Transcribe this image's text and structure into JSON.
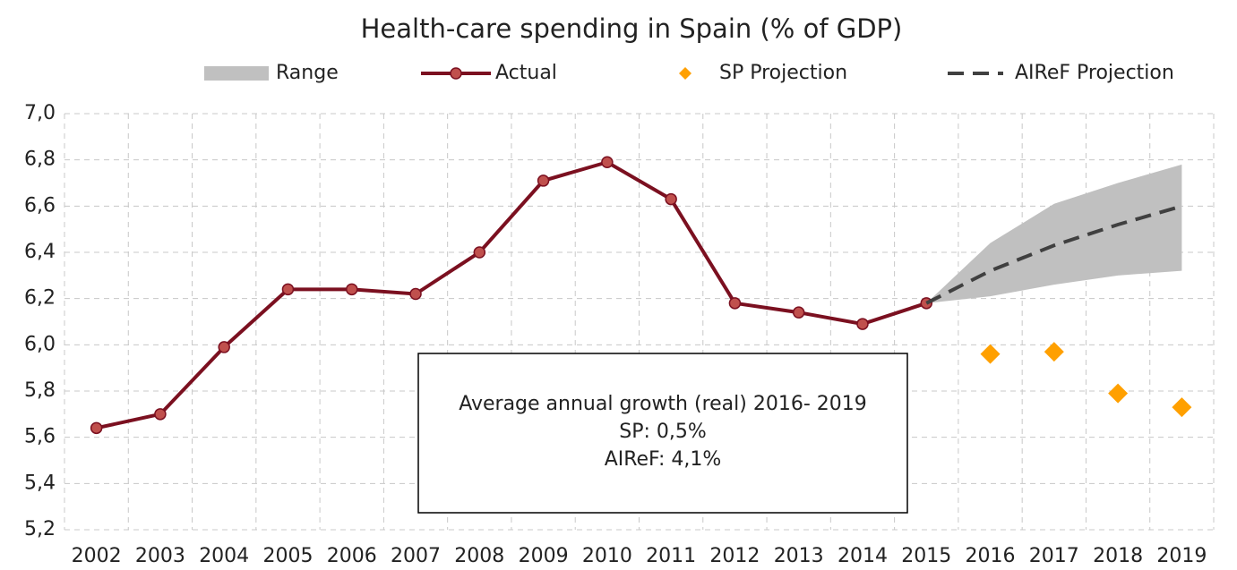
{
  "chart_data": {
    "type": "line",
    "title": "Health-care spending in Spain (% of GDP)",
    "categories": [
      "2002",
      "2003",
      "2004",
      "2005",
      "2006",
      "2007",
      "2008",
      "2009",
      "2010",
      "2011",
      "2012",
      "2013",
      "2014",
      "2015",
      "2016",
      "2017",
      "2018",
      "2019"
    ],
    "series": [
      {
        "name": "Range",
        "kind": "area",
        "color": "#c0c0c0",
        "low": [
          null,
          null,
          null,
          null,
          null,
          null,
          null,
          null,
          null,
          null,
          null,
          null,
          null,
          6.18,
          6.21,
          6.26,
          6.3,
          6.32
        ],
        "high": [
          null,
          null,
          null,
          null,
          null,
          null,
          null,
          null,
          null,
          null,
          null,
          null,
          null,
          6.18,
          6.44,
          6.61,
          6.7,
          6.78
        ]
      },
      {
        "name": "Actual",
        "kind": "line",
        "color": "#7b1020",
        "marker_color": "#c0504d",
        "values": [
          5.64,
          5.7,
          5.99,
          6.24,
          6.24,
          6.22,
          6.4,
          6.71,
          6.79,
          6.63,
          6.18,
          6.14,
          6.09,
          6.18,
          null,
          null,
          null,
          null
        ]
      },
      {
        "name": "SP Projection",
        "kind": "marker",
        "color": "#ffa000",
        "values": [
          null,
          null,
          null,
          null,
          null,
          null,
          null,
          null,
          null,
          null,
          null,
          null,
          null,
          null,
          5.96,
          5.97,
          5.79,
          5.73
        ]
      },
      {
        "name": "AIReF Projection",
        "kind": "dashed",
        "color": "#404040",
        "values": [
          null,
          null,
          null,
          null,
          null,
          null,
          null,
          null,
          null,
          null,
          null,
          null,
          null,
          6.18,
          6.32,
          6.43,
          6.52,
          6.6
        ]
      }
    ],
    "ylim": [
      5.2,
      7.0
    ],
    "yticks": [
      {
        "value": 5.2,
        "label": "5,2"
      },
      {
        "value": 5.4,
        "label": "5,4"
      },
      {
        "value": 5.6,
        "label": "5,6"
      },
      {
        "value": 5.8,
        "label": "5,8"
      },
      {
        "value": 6.0,
        "label": "6,0"
      },
      {
        "value": 6.2,
        "label": "6,2"
      },
      {
        "value": 6.4,
        "label": "6,4"
      },
      {
        "value": 6.6,
        "label": "6,6"
      },
      {
        "value": 6.8,
        "label": "6,8"
      },
      {
        "value": 7.0,
        "label": "7,0"
      }
    ],
    "grid": true,
    "legend": "top",
    "annotations": [
      "Average annual growth (real) 2016- 2019",
      "SP: 0,5%",
      "AIReF: 4,1%"
    ]
  }
}
